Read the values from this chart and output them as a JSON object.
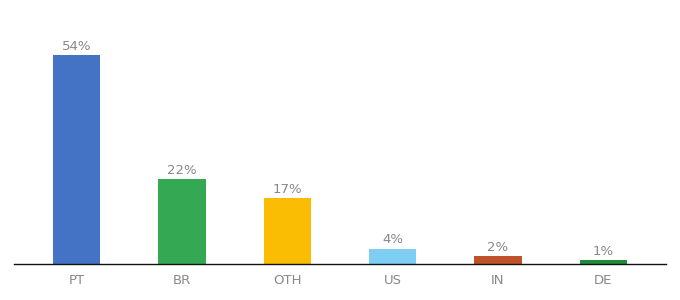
{
  "categories": [
    "PT",
    "BR",
    "OTH",
    "US",
    "IN",
    "DE"
  ],
  "values": [
    54,
    22,
    17,
    4,
    2,
    1
  ],
  "bar_colors": [
    "#4472C4",
    "#34A853",
    "#FBBC04",
    "#7ECEF4",
    "#C0522B",
    "#1E8C3A"
  ],
  "label_color": "#888888",
  "background_color": "#FFFFFF",
  "ylim": [
    0,
    62
  ],
  "bar_width": 0.45,
  "label_fontsize": 9.5,
  "tick_fontsize": 9.5,
  "figsize": [
    6.8,
    3.0
  ],
  "dpi": 100
}
